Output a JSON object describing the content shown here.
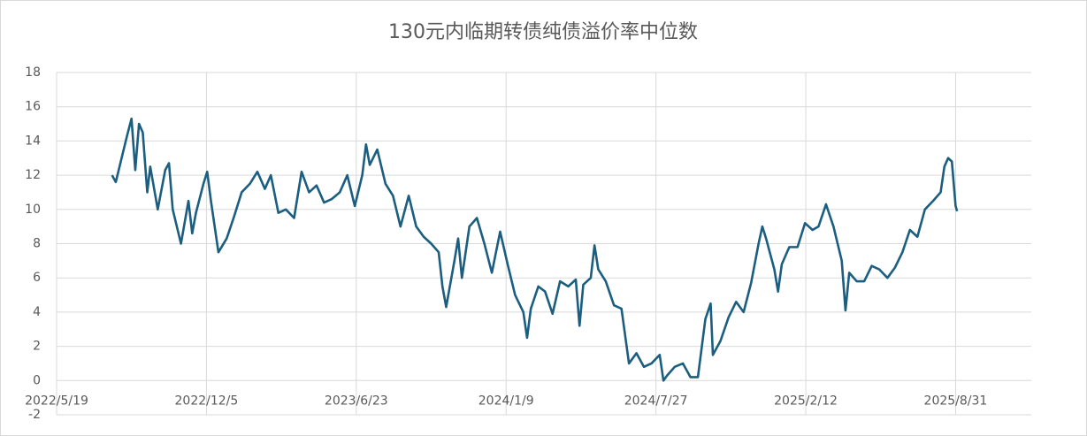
{
  "chart_data": {
    "type": "line",
    "title": "130元内临期转债纯债溢价率中位数",
    "x": [
      "2022/8/1",
      "2022/8/6",
      "2022/8/11",
      "2022/8/21",
      "2022/8/27",
      "2022/9/1",
      "2022/9/6",
      "2022/9/11",
      "2022/9/17",
      "2022/9/21",
      "2022/10/1",
      "2022/10/11",
      "2022/10/16",
      "2022/10/21",
      "2022/11/1",
      "2022/11/11",
      "2022/11/16",
      "2022/11/21",
      "2022/12/1",
      "2022/12/6",
      "2022/12/11",
      "2022/12/21",
      "2023/1/1",
      "2023/1/11",
      "2023/1/21",
      "2023/2/1",
      "2023/2/11",
      "2023/2/21",
      "2023/3/1",
      "2023/3/11",
      "2023/3/21",
      "2023/4/1",
      "2023/4/11",
      "2023/4/21",
      "2023/5/1",
      "2023/5/11",
      "2023/5/21",
      "2023/6/1",
      "2023/6/11",
      "2023/6/21",
      "2023/7/1",
      "2023/7/6",
      "2023/7/11",
      "2023/7/21",
      "2023/8/1",
      "2023/8/11",
      "2023/8/21",
      "2023/9/1",
      "2023/9/11",
      "2023/9/21",
      "2023/10/1",
      "2023/10/11",
      "2023/10/16",
      "2023/10/21",
      "2023/11/1",
      "2023/11/6",
      "2023/11/11",
      "2023/11/21",
      "2023/12/1",
      "2023/12/11",
      "2023/12/21",
      "2024/1/1",
      "2024/1/11",
      "2024/1/21",
      "2024/2/1",
      "2024/2/6",
      "2024/2/11",
      "2024/2/21",
      "2024/3/1",
      "2024/3/11",
      "2024/3/21",
      "2024/4/1",
      "2024/4/11",
      "2024/4/16",
      "2024/4/21",
      "2024/5/1",
      "2024/5/6",
      "2024/5/11",
      "2024/5/21",
      "2024/6/1",
      "2024/6/11",
      "2024/6/21",
      "2024/7/1",
      "2024/7/11",
      "2024/7/21",
      "2024/8/1",
      "2024/8/6",
      "2024/8/11",
      "2024/8/21",
      "2024/9/1",
      "2024/9/11",
      "2024/9/21",
      "2024/10/1",
      "2024/10/8",
      "2024/10/11",
      "2024/10/21",
      "2024/11/1",
      "2024/11/11",
      "2024/11/21",
      "2024/12/1",
      "2024/12/11",
      "2024/12/16",
      "2024/12/21",
      "2025/1/1",
      "2025/1/6",
      "2025/1/11",
      "2025/1/21",
      "2025/2/1",
      "2025/2/11",
      "2025/2/21",
      "2025/3/1",
      "2025/3/11",
      "2025/3/21",
      "2025/4/1",
      "2025/4/6",
      "2025/4/11",
      "2025/4/21",
      "2025/5/1",
      "2025/5/11",
      "2025/5/21",
      "2025/6/1",
      "2025/6/11",
      "2025/6/21",
      "2025/7/1",
      "2025/7/11",
      "2025/7/21",
      "2025/8/1",
      "2025/8/11",
      "2025/8/16",
      "2025/8/21",
      "2025/8/26",
      "2025/8/31",
      "2025/9/2"
    ],
    "series": [
      {
        "name": "纯债溢价率中位数",
        "color": "#1b5e80",
        "values": [
          12.0,
          11.6,
          12.5,
          14.3,
          15.3,
          12.3,
          15.0,
          14.5,
          11.0,
          12.5,
          10.0,
          12.3,
          12.7,
          10.0,
          8.0,
          10.5,
          8.6,
          9.8,
          11.5,
          12.2,
          10.5,
          7.5,
          8.3,
          9.6,
          11.0,
          11.5,
          12.2,
          11.2,
          12.0,
          9.8,
          10.0,
          9.5,
          12.2,
          11.0,
          11.4,
          10.4,
          10.6,
          11.0,
          12.0,
          10.2,
          12.0,
          13.8,
          12.6,
          13.5,
          11.5,
          10.8,
          9.0,
          10.8,
          9.0,
          8.4,
          8.0,
          7.5,
          5.5,
          4.3,
          7.0,
          8.3,
          6.0,
          9.0,
          9.5,
          8.0,
          6.3,
          8.7,
          6.8,
          5.0,
          4.0,
          2.5,
          4.2,
          5.5,
          5.2,
          3.9,
          5.8,
          5.5,
          5.9,
          3.2,
          5.6,
          6.0,
          7.9,
          6.5,
          5.8,
          4.4,
          4.2,
          1.0,
          1.6,
          0.8,
          1.0,
          1.5,
          0.0,
          0.3,
          0.8,
          1.0,
          0.2,
          0.2,
          3.6,
          4.5,
          1.5,
          2.3,
          3.7,
          4.6,
          4.0,
          5.7,
          8.0,
          9.0,
          8.3,
          6.5,
          5.2,
          6.8,
          7.8,
          7.8,
          9.2,
          8.8,
          9.0,
          10.3,
          9.0,
          7.0,
          4.1,
          6.3,
          5.8,
          5.8,
          6.7,
          6.5,
          6.0,
          6.6,
          7.5,
          8.8,
          8.4,
          10.0,
          10.5,
          11.0,
          12.5,
          13.0,
          12.8,
          10.2,
          9.9
        ]
      }
    ],
    "xlim": [
      "2022/5/19",
      "2025/12/10"
    ],
    "xticks": [
      "2022/5/19",
      "2022/12/5",
      "2023/6/23",
      "2024/1/9",
      "2024/7/27",
      "2025/2/12",
      "2025/8/31"
    ],
    "ylim": [
      -2,
      18
    ],
    "yticks": [
      -2,
      0,
      2,
      4,
      6,
      8,
      10,
      12,
      14,
      16,
      18
    ],
    "grid": true
  }
}
